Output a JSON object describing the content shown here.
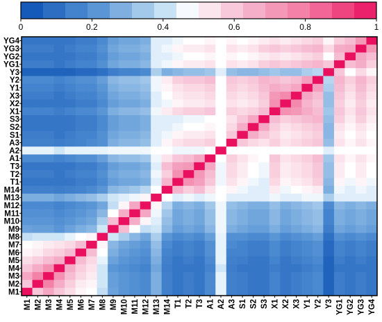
{
  "chart_data": {
    "type": "heatmap",
    "title": "",
    "xlabel": "",
    "ylabel": "",
    "colorbar": {
      "ticks": [
        "0",
        "0.2",
        "0.4",
        "0.6",
        "0.8",
        "1"
      ],
      "tick_values": [
        0,
        0.2,
        0.4,
        0.6,
        0.8,
        1
      ],
      "range": [
        0,
        1
      ],
      "stops": [
        {
          "v": 0.0,
          "color": "#0a50b4"
        },
        {
          "v": 0.22,
          "color": "#5a96d6"
        },
        {
          "v": 0.42,
          "color": "#cfe6f7"
        },
        {
          "v": 0.48,
          "color": "#ffffff"
        },
        {
          "v": 0.62,
          "color": "#f6bcd1"
        },
        {
          "v": 0.82,
          "color": "#f2739e"
        },
        {
          "v": 1.0,
          "color": "#ea1060"
        }
      ]
    },
    "categories": [
      "M1",
      "M2",
      "M3",
      "M4",
      "M5",
      "M6",
      "M7",
      "M8",
      "M9",
      "M10",
      "M11",
      "M12",
      "M13",
      "M14",
      "T1",
      "T2",
      "T3",
      "A1",
      "A2",
      "A3",
      "S1",
      "S2",
      "S3",
      "X1",
      "X2",
      "X3",
      "Y1",
      "Y2",
      "Y3",
      "YG1",
      "YG2",
      "YG3",
      "YG4"
    ],
    "values": [
      [
        1.0,
        0.6,
        0.68,
        0.6,
        0.55,
        0.5,
        0.48,
        0.4,
        0.25,
        0.22,
        0.2,
        0.18,
        0.28,
        0.15,
        0.12,
        0.14,
        0.12,
        0.18,
        0.45,
        0.15,
        0.14,
        0.12,
        0.12,
        0.16,
        0.12,
        0.14,
        0.16,
        0.18,
        0.06,
        0.14,
        0.12,
        0.14,
        0.12
      ],
      [
        0.6,
        1.0,
        0.78,
        0.66,
        0.58,
        0.52,
        0.5,
        0.42,
        0.24,
        0.22,
        0.2,
        0.18,
        0.28,
        0.15,
        0.12,
        0.14,
        0.12,
        0.18,
        0.45,
        0.15,
        0.14,
        0.12,
        0.12,
        0.16,
        0.12,
        0.14,
        0.16,
        0.18,
        0.06,
        0.14,
        0.12,
        0.14,
        0.12
      ],
      [
        0.68,
        0.78,
        1.0,
        0.74,
        0.62,
        0.56,
        0.52,
        0.42,
        0.24,
        0.22,
        0.2,
        0.18,
        0.28,
        0.15,
        0.12,
        0.14,
        0.12,
        0.18,
        0.45,
        0.15,
        0.14,
        0.12,
        0.12,
        0.16,
        0.12,
        0.14,
        0.16,
        0.18,
        0.06,
        0.14,
        0.12,
        0.14,
        0.12
      ],
      [
        0.6,
        0.66,
        0.74,
        1.0,
        0.66,
        0.58,
        0.54,
        0.42,
        0.22,
        0.2,
        0.18,
        0.16,
        0.26,
        0.14,
        0.12,
        0.12,
        0.12,
        0.16,
        0.42,
        0.14,
        0.12,
        0.12,
        0.12,
        0.14,
        0.12,
        0.12,
        0.14,
        0.16,
        0.06,
        0.12,
        0.12,
        0.12,
        0.12
      ],
      [
        0.55,
        0.58,
        0.62,
        0.66,
        1.0,
        0.62,
        0.56,
        0.45,
        0.25,
        0.22,
        0.2,
        0.18,
        0.28,
        0.15,
        0.12,
        0.14,
        0.12,
        0.18,
        0.45,
        0.15,
        0.14,
        0.12,
        0.12,
        0.16,
        0.12,
        0.14,
        0.16,
        0.18,
        0.06,
        0.14,
        0.12,
        0.14,
        0.12
      ],
      [
        0.5,
        0.52,
        0.56,
        0.58,
        0.62,
        1.0,
        0.62,
        0.48,
        0.28,
        0.24,
        0.22,
        0.2,
        0.3,
        0.16,
        0.14,
        0.16,
        0.14,
        0.2,
        0.45,
        0.16,
        0.16,
        0.14,
        0.14,
        0.18,
        0.14,
        0.16,
        0.18,
        0.2,
        0.08,
        0.16,
        0.14,
        0.16,
        0.14
      ],
      [
        0.48,
        0.5,
        0.52,
        0.54,
        0.56,
        0.62,
        1.0,
        0.5,
        0.3,
        0.26,
        0.24,
        0.22,
        0.32,
        0.18,
        0.14,
        0.16,
        0.14,
        0.2,
        0.45,
        0.18,
        0.16,
        0.14,
        0.14,
        0.18,
        0.14,
        0.16,
        0.18,
        0.2,
        0.08,
        0.16,
        0.14,
        0.16,
        0.14
      ],
      [
        0.4,
        0.42,
        0.42,
        0.42,
        0.45,
        0.48,
        0.5,
        1.0,
        0.42,
        0.36,
        0.3,
        0.26,
        0.36,
        0.22,
        0.18,
        0.2,
        0.18,
        0.24,
        0.45,
        0.2,
        0.2,
        0.18,
        0.18,
        0.22,
        0.18,
        0.2,
        0.22,
        0.24,
        0.1,
        0.2,
        0.18,
        0.2,
        0.18
      ],
      [
        0.25,
        0.24,
        0.24,
        0.22,
        0.25,
        0.28,
        0.3,
        0.42,
        1.0,
        0.62,
        0.48,
        0.4,
        0.42,
        0.3,
        0.24,
        0.26,
        0.24,
        0.3,
        0.46,
        0.28,
        0.26,
        0.24,
        0.24,
        0.28,
        0.24,
        0.26,
        0.28,
        0.3,
        0.14,
        0.26,
        0.24,
        0.26,
        0.24
      ],
      [
        0.22,
        0.22,
        0.22,
        0.2,
        0.22,
        0.24,
        0.26,
        0.36,
        0.62,
        1.0,
        0.66,
        0.5,
        0.44,
        0.32,
        0.26,
        0.28,
        0.26,
        0.32,
        0.46,
        0.3,
        0.28,
        0.26,
        0.26,
        0.3,
        0.26,
        0.28,
        0.3,
        0.32,
        0.16,
        0.28,
        0.26,
        0.28,
        0.26
      ],
      [
        0.2,
        0.2,
        0.2,
        0.18,
        0.2,
        0.22,
        0.24,
        0.3,
        0.48,
        0.66,
        1.0,
        0.68,
        0.46,
        0.34,
        0.26,
        0.28,
        0.26,
        0.32,
        0.46,
        0.3,
        0.28,
        0.26,
        0.26,
        0.3,
        0.26,
        0.28,
        0.3,
        0.32,
        0.16,
        0.28,
        0.26,
        0.28,
        0.26
      ],
      [
        0.18,
        0.18,
        0.18,
        0.16,
        0.18,
        0.2,
        0.22,
        0.26,
        0.4,
        0.5,
        0.68,
        1.0,
        0.5,
        0.38,
        0.28,
        0.3,
        0.28,
        0.34,
        0.46,
        0.32,
        0.3,
        0.28,
        0.28,
        0.32,
        0.28,
        0.3,
        0.32,
        0.34,
        0.18,
        0.3,
        0.28,
        0.3,
        0.28
      ],
      [
        0.28,
        0.28,
        0.28,
        0.26,
        0.28,
        0.3,
        0.32,
        0.36,
        0.42,
        0.44,
        0.46,
        0.5,
        1.0,
        0.48,
        0.44,
        0.46,
        0.44,
        0.46,
        0.48,
        0.44,
        0.44,
        0.44,
        0.44,
        0.46,
        0.44,
        0.44,
        0.46,
        0.46,
        0.36,
        0.44,
        0.44,
        0.44,
        0.44
      ],
      [
        0.15,
        0.15,
        0.15,
        0.14,
        0.15,
        0.16,
        0.18,
        0.22,
        0.3,
        0.32,
        0.34,
        0.38,
        0.48,
        1.0,
        0.64,
        0.58,
        0.62,
        0.54,
        0.48,
        0.5,
        0.46,
        0.44,
        0.44,
        0.52,
        0.46,
        0.48,
        0.5,
        0.52,
        0.28,
        0.46,
        0.44,
        0.46,
        0.44
      ],
      [
        0.12,
        0.12,
        0.12,
        0.12,
        0.12,
        0.14,
        0.14,
        0.18,
        0.24,
        0.26,
        0.26,
        0.28,
        0.44,
        0.64,
        1.0,
        0.74,
        0.7,
        0.6,
        0.46,
        0.54,
        0.5,
        0.46,
        0.44,
        0.56,
        0.5,
        0.52,
        0.54,
        0.58,
        0.3,
        0.5,
        0.46,
        0.5,
        0.46
      ],
      [
        0.14,
        0.14,
        0.14,
        0.12,
        0.14,
        0.16,
        0.16,
        0.2,
        0.26,
        0.28,
        0.28,
        0.3,
        0.46,
        0.58,
        0.74,
        1.0,
        0.72,
        0.62,
        0.46,
        0.56,
        0.52,
        0.48,
        0.46,
        0.58,
        0.52,
        0.54,
        0.56,
        0.6,
        0.32,
        0.52,
        0.48,
        0.52,
        0.48
      ],
      [
        0.12,
        0.12,
        0.12,
        0.12,
        0.12,
        0.14,
        0.14,
        0.18,
        0.24,
        0.26,
        0.26,
        0.28,
        0.44,
        0.62,
        0.7,
        0.72,
        1.0,
        0.68,
        0.46,
        0.56,
        0.52,
        0.48,
        0.46,
        0.58,
        0.52,
        0.54,
        0.56,
        0.6,
        0.32,
        0.52,
        0.48,
        0.52,
        0.48
      ],
      [
        0.18,
        0.18,
        0.18,
        0.16,
        0.18,
        0.2,
        0.2,
        0.24,
        0.3,
        0.32,
        0.32,
        0.34,
        0.46,
        0.54,
        0.6,
        0.62,
        0.68,
        1.0,
        0.48,
        0.58,
        0.54,
        0.5,
        0.48,
        0.6,
        0.54,
        0.56,
        0.58,
        0.62,
        0.34,
        0.54,
        0.5,
        0.54,
        0.5
      ],
      [
        0.45,
        0.45,
        0.45,
        0.42,
        0.45,
        0.45,
        0.45,
        0.45,
        0.46,
        0.46,
        0.46,
        0.46,
        0.48,
        0.48,
        0.46,
        0.46,
        0.46,
        0.48,
        1.0,
        0.48,
        0.48,
        0.48,
        0.48,
        0.48,
        0.48,
        0.48,
        0.48,
        0.48,
        0.44,
        0.48,
        0.48,
        0.48,
        0.48
      ],
      [
        0.15,
        0.15,
        0.15,
        0.14,
        0.15,
        0.16,
        0.18,
        0.2,
        0.28,
        0.3,
        0.3,
        0.32,
        0.44,
        0.5,
        0.54,
        0.56,
        0.56,
        0.58,
        0.48,
        1.0,
        0.6,
        0.56,
        0.54,
        0.58,
        0.54,
        0.56,
        0.58,
        0.6,
        0.32,
        0.54,
        0.5,
        0.54,
        0.5
      ],
      [
        0.14,
        0.14,
        0.14,
        0.12,
        0.14,
        0.16,
        0.16,
        0.2,
        0.26,
        0.28,
        0.28,
        0.3,
        0.44,
        0.46,
        0.5,
        0.52,
        0.52,
        0.54,
        0.48,
        0.6,
        1.0,
        0.66,
        0.6,
        0.56,
        0.52,
        0.54,
        0.56,
        0.58,
        0.3,
        0.52,
        0.48,
        0.52,
        0.48
      ],
      [
        0.12,
        0.12,
        0.12,
        0.12,
        0.12,
        0.14,
        0.14,
        0.18,
        0.24,
        0.26,
        0.26,
        0.28,
        0.44,
        0.44,
        0.46,
        0.48,
        0.48,
        0.5,
        0.48,
        0.56,
        0.66,
        1.0,
        0.68,
        0.58,
        0.54,
        0.56,
        0.58,
        0.6,
        0.3,
        0.54,
        0.5,
        0.54,
        0.5
      ],
      [
        0.12,
        0.12,
        0.12,
        0.12,
        0.12,
        0.14,
        0.14,
        0.18,
        0.24,
        0.26,
        0.26,
        0.28,
        0.44,
        0.44,
        0.44,
        0.46,
        0.46,
        0.48,
        0.48,
        0.54,
        0.6,
        0.68,
        1.0,
        0.62,
        0.58,
        0.6,
        0.62,
        0.64,
        0.32,
        0.58,
        0.52,
        0.58,
        0.52
      ],
      [
        0.16,
        0.16,
        0.16,
        0.14,
        0.16,
        0.18,
        0.18,
        0.22,
        0.28,
        0.3,
        0.3,
        0.32,
        0.46,
        0.52,
        0.56,
        0.58,
        0.58,
        0.6,
        0.48,
        0.58,
        0.56,
        0.58,
        0.62,
        1.0,
        0.74,
        0.72,
        0.66,
        0.62,
        0.34,
        0.6,
        0.54,
        0.6,
        0.54
      ],
      [
        0.12,
        0.12,
        0.12,
        0.12,
        0.12,
        0.14,
        0.14,
        0.18,
        0.24,
        0.26,
        0.26,
        0.28,
        0.44,
        0.46,
        0.5,
        0.52,
        0.52,
        0.54,
        0.48,
        0.54,
        0.52,
        0.54,
        0.58,
        0.74,
        1.0,
        0.76,
        0.64,
        0.6,
        0.32,
        0.58,
        0.52,
        0.58,
        0.52
      ],
      [
        0.14,
        0.14,
        0.14,
        0.12,
        0.14,
        0.16,
        0.16,
        0.2,
        0.26,
        0.28,
        0.28,
        0.3,
        0.44,
        0.48,
        0.52,
        0.54,
        0.54,
        0.56,
        0.48,
        0.56,
        0.54,
        0.56,
        0.6,
        0.72,
        0.76,
        1.0,
        0.68,
        0.62,
        0.32,
        0.6,
        0.54,
        0.6,
        0.54
      ],
      [
        0.16,
        0.16,
        0.16,
        0.14,
        0.16,
        0.18,
        0.18,
        0.22,
        0.28,
        0.3,
        0.3,
        0.32,
        0.46,
        0.5,
        0.54,
        0.56,
        0.56,
        0.58,
        0.48,
        0.58,
        0.56,
        0.58,
        0.62,
        0.66,
        0.64,
        0.68,
        1.0,
        0.7,
        0.36,
        0.62,
        0.56,
        0.62,
        0.56
      ],
      [
        0.18,
        0.18,
        0.18,
        0.16,
        0.18,
        0.2,
        0.2,
        0.24,
        0.3,
        0.32,
        0.32,
        0.34,
        0.46,
        0.52,
        0.58,
        0.6,
        0.6,
        0.62,
        0.48,
        0.6,
        0.58,
        0.6,
        0.64,
        0.62,
        0.6,
        0.62,
        0.7,
        1.0,
        0.38,
        0.64,
        0.58,
        0.64,
        0.58
      ],
      [
        0.06,
        0.06,
        0.06,
        0.06,
        0.06,
        0.08,
        0.08,
        0.1,
        0.14,
        0.16,
        0.16,
        0.18,
        0.36,
        0.28,
        0.3,
        0.32,
        0.32,
        0.34,
        0.44,
        0.32,
        0.3,
        0.3,
        0.32,
        0.34,
        0.32,
        0.32,
        0.36,
        0.38,
        1.0,
        0.6,
        0.48,
        0.56,
        0.5
      ],
      [
        0.14,
        0.14,
        0.14,
        0.12,
        0.14,
        0.16,
        0.16,
        0.2,
        0.26,
        0.28,
        0.28,
        0.3,
        0.44,
        0.46,
        0.5,
        0.52,
        0.52,
        0.54,
        0.48,
        0.54,
        0.52,
        0.54,
        0.58,
        0.6,
        0.58,
        0.6,
        0.62,
        0.64,
        0.6,
        1.0,
        0.62,
        0.66,
        0.58
      ],
      [
        0.12,
        0.12,
        0.12,
        0.12,
        0.12,
        0.14,
        0.14,
        0.18,
        0.24,
        0.26,
        0.26,
        0.28,
        0.44,
        0.44,
        0.46,
        0.48,
        0.48,
        0.5,
        0.48,
        0.5,
        0.48,
        0.5,
        0.52,
        0.54,
        0.52,
        0.54,
        0.56,
        0.58,
        0.48,
        0.62,
        1.0,
        0.68,
        0.62
      ],
      [
        0.14,
        0.14,
        0.14,
        0.12,
        0.14,
        0.16,
        0.16,
        0.2,
        0.26,
        0.28,
        0.28,
        0.3,
        0.44,
        0.46,
        0.5,
        0.52,
        0.52,
        0.54,
        0.48,
        0.54,
        0.52,
        0.54,
        0.58,
        0.6,
        0.58,
        0.6,
        0.62,
        0.64,
        0.56,
        0.66,
        0.68,
        1.0,
        0.72
      ],
      [
        0.12,
        0.12,
        0.12,
        0.12,
        0.12,
        0.14,
        0.14,
        0.18,
        0.24,
        0.26,
        0.26,
        0.28,
        0.44,
        0.44,
        0.46,
        0.48,
        0.48,
        0.5,
        0.48,
        0.5,
        0.48,
        0.5,
        0.52,
        0.54,
        0.52,
        0.54,
        0.56,
        0.58,
        0.5,
        0.58,
        0.62,
        0.72,
        1.0
      ]
    ]
  }
}
